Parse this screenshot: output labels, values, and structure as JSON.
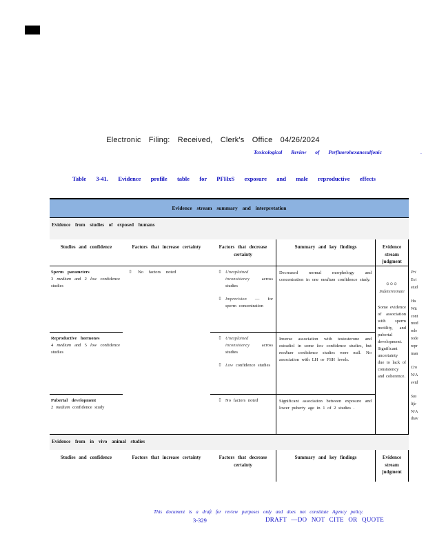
{
  "page": {
    "filing_header": "Electronic Filing: Received, Clerk's Office 04/26/2024",
    "doc_title_italic": "Toxicological Review of Perfluorohexanesulfonic",
    "doc_title_trail": ".",
    "table_title": "Table 3-41. Evidence profile table for PFHxS exposure and male reproductive effects",
    "footer_draft_note": "This document is a draft for review purposes only and does not constitute Agency policy.",
    "footer_page_number": "3-329",
    "footer_draft_label": "DRAFT —DO NOT CITE OR QUOTE"
  },
  "table": {
    "stream_header": "Evidence stream summary and interpretation",
    "section_human": "Evidence from studies of exposed humans",
    "section_animal": "Evidence from in vivo animal studies",
    "bullet": "▯",
    "columns": {
      "studies": "Studies and confidence",
      "increase": "Factors that increase certainty",
      "decrease": "Factors that decrease certainty",
      "summary": "Summary and key findings",
      "judgment": "Evidence stream judgment"
    },
    "rows": [
      {
        "title": "Sperm parameters",
        "sub": {
          "p0": "3 ",
          "p1": "medium",
          "p2": " and 2 ",
          "p3": "low",
          "p4": " confidence studies"
        },
        "increase": [
          {
            "lead": "",
            "rest": "No factors noted"
          }
        ],
        "decrease": [
          {
            "lead": "Unexplained inconsistency",
            "rest": " across studies"
          },
          {
            "lead": "Imprecision",
            "rest": " — for sperm concentration"
          }
        ],
        "summary": {
          "p0": "Decreased normal morphology and concentration in one ",
          "p1": "medium",
          "p2": " confidence study."
        }
      },
      {
        "title": "Reproductive hormones",
        "sub": {
          "p0": "4 ",
          "p1": "medium",
          "p2": " and 5 ",
          "p3": "low",
          "p4": " confidence studies"
        },
        "increase": [],
        "decrease": [
          {
            "lead": "Unexplained inconsistency",
            "rest": " across studies"
          },
          {
            "lead": "Low",
            "rest": " confidence studies"
          }
        ],
        "summary": {
          "p0": "Inverse association with testosterone and estradiol in some ",
          "p1": "low",
          "p2": " confidence studies, but ",
          "p3": "medium",
          "p4": " confidence studies were null. No association with LH or FSH levels."
        }
      },
      {
        "title": "Pubertal development",
        "sub": {
          "p0": "2 ",
          "p1": "medium",
          "p2": " confidence study"
        },
        "increase": [],
        "decrease": [
          {
            "lead": "",
            "rest": "No factors noted"
          }
        ],
        "summary": {
          "p0": "Significant association between exposure and lower puberty age in 1 of 2 studies ."
        }
      }
    ],
    "judgment": {
      "symbols": "⊙⊙⊙",
      "label": "Indeterminate",
      "body": "Some evidence of association with sperm motility, and pubertal development. Significant uncertainty due to lack of consistency and coherence."
    }
  },
  "clipped_column": {
    "groups": [
      {
        "l0": "Pri",
        "l1": "Evi",
        "l2": "stud"
      },
      {
        "l0": "Hu",
        "l1": "Wit",
        "l2": "cont",
        "l3": "mod",
        "l4": "rele",
        "l5": "rode",
        "l6": "repr",
        "l7": "man"
      },
      {
        "l0": "Cro",
        "l1": "N/A",
        "l2": "evid"
      },
      {
        "l0": "Sus",
        "l1": "life",
        "l2": "N/A",
        "l3": "drav"
      }
    ]
  },
  "colors": {
    "band_blue": "#8cb2e0",
    "band_gray": "#f2f2f2",
    "link_blue": "#1414c8"
  }
}
